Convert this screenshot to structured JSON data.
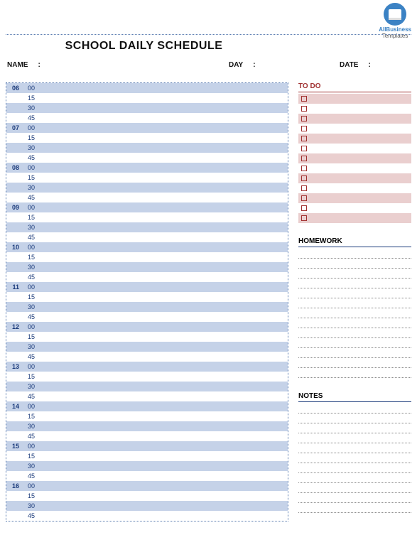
{
  "branding": {
    "line1": "AllBusiness",
    "line2": "Templates"
  },
  "title": "SCHOOL DAILY SCHEDULE",
  "fields": {
    "name_label": "NAME",
    "day_label": "DAY",
    "date_label": "DATE",
    "colon": ":"
  },
  "schedule": {
    "hours": [
      "06",
      "07",
      "08",
      "09",
      "10",
      "11",
      "12",
      "13",
      "14",
      "15",
      "16"
    ],
    "minutes": [
      "00",
      "15",
      "30",
      "45"
    ],
    "row_odd_color": "#c5d2e8",
    "row_even_color": "#ffffff",
    "text_color": "#1a3a7a",
    "border_color": "#5a7cb0"
  },
  "todo": {
    "title": "TO DO",
    "rows": 13,
    "row_odd_color": "#eacfcf",
    "row_even_color": "#ffffff",
    "accent_color": "#a03030"
  },
  "homework": {
    "title": "HOMEWORK",
    "lines": 13,
    "accent_color": "#1a3a7a"
  },
  "notes": {
    "title": "NOTES",
    "lines": 11,
    "accent_color": "#1a3a7a"
  }
}
